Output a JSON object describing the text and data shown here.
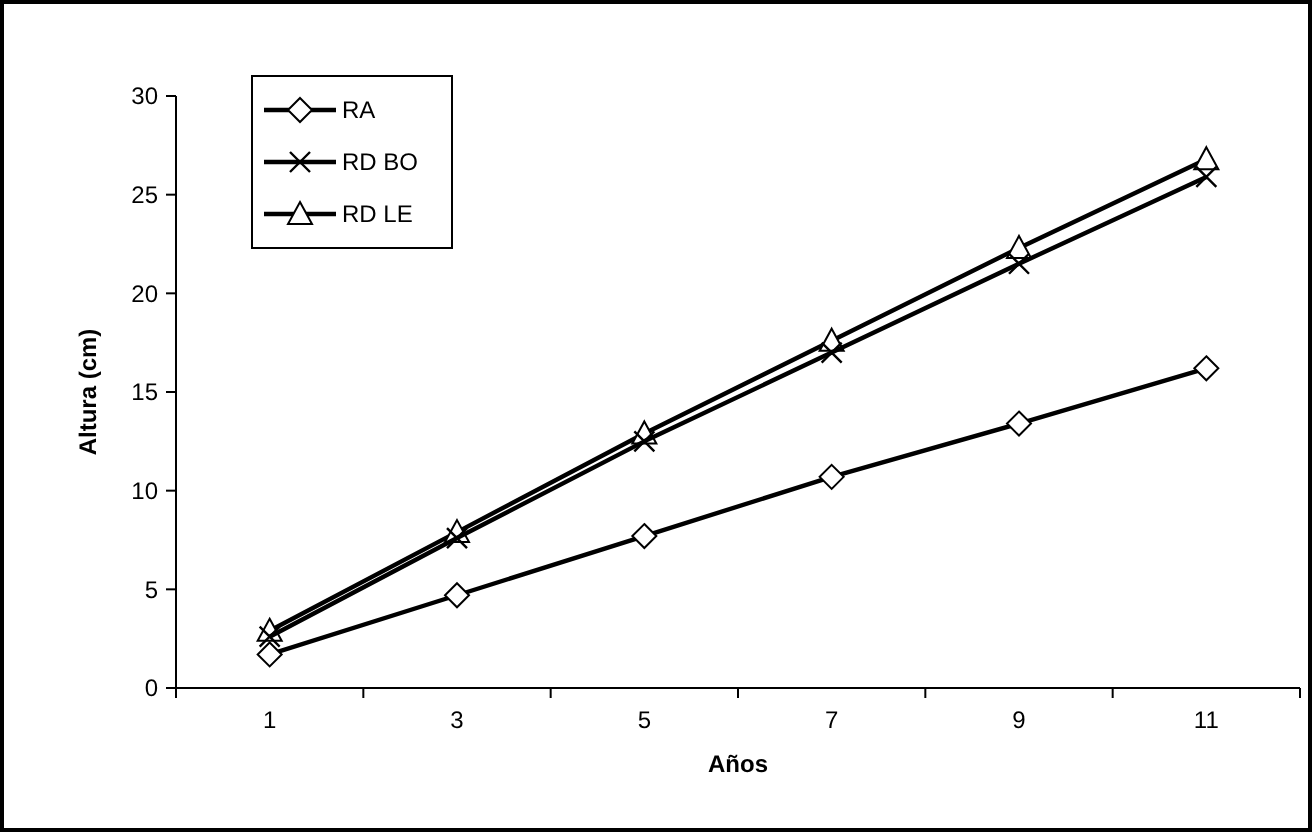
{
  "chart_data": {
    "type": "line",
    "xlabel": "Años",
    "ylabel": "Altura (cm)",
    "categories": [
      "1",
      "3",
      "5",
      "7",
      "9",
      "11"
    ],
    "ylim": [
      0,
      30
    ],
    "yticks": [
      0,
      5,
      10,
      15,
      20,
      25,
      30
    ],
    "grid": false,
    "legend": "top left",
    "series": [
      {
        "name": "RA",
        "color": "#000000",
        "marker": "diamond",
        "values": [
          1.7,
          4.7,
          7.7,
          10.7,
          13.4,
          16.2
        ]
      },
      {
        "name": "RD BO",
        "color": "#000000",
        "marker": "cross",
        "values": [
          2.6,
          7.6,
          12.5,
          17.0,
          21.5,
          25.9
        ]
      },
      {
        "name": "RD LE",
        "color": "#000000",
        "marker": "triangle",
        "values": [
          2.9,
          7.9,
          12.9,
          17.6,
          22.3,
          26.8
        ]
      }
    ]
  }
}
